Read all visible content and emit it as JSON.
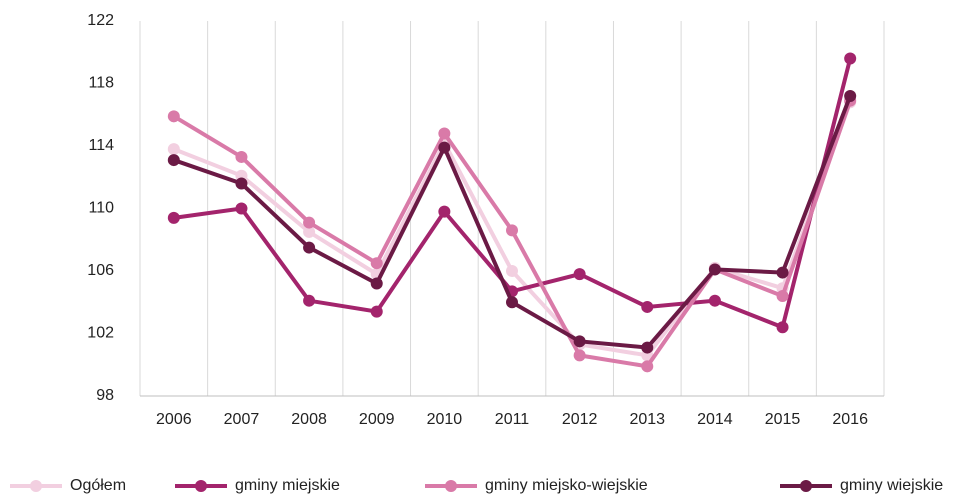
{
  "chart_data": {
    "type": "line",
    "categories": [
      "2006",
      "2007",
      "2008",
      "2009",
      "2010",
      "2011",
      "2012",
      "2013",
      "2014",
      "2015",
      "2016"
    ],
    "series": [
      {
        "name": "Ogółem",
        "color": "#f2cfe0",
        "values": [
          113.8,
          112.1,
          108.5,
          105.8,
          114.2,
          106.0,
          101.3,
          100.6,
          106.2,
          104.9,
          116.8
        ]
      },
      {
        "name": "gminy miejskie",
        "color": "#a3246c",
        "values": [
          109.4,
          110.0,
          104.1,
          103.4,
          109.8,
          104.7,
          105.8,
          103.7,
          104.1,
          102.4,
          119.6
        ]
      },
      {
        "name": "gminy miejsko-wiejskie",
        "color": "#d97aa8",
        "values": [
          115.9,
          113.3,
          109.1,
          106.5,
          114.8,
          108.6,
          100.6,
          99.9,
          106.1,
          104.4,
          116.9
        ]
      },
      {
        "name": "gminy wiejskie",
        "color": "#6b1a45",
        "values": [
          113.1,
          111.6,
          107.5,
          105.2,
          113.9,
          104.0,
          101.5,
          101.1,
          106.1,
          105.9,
          117.2
        ]
      }
    ],
    "ylim": [
      98,
      122
    ],
    "yticks": [
      98,
      102,
      106,
      110,
      114,
      118,
      122
    ],
    "grid": "x",
    "legend": "bottom"
  }
}
